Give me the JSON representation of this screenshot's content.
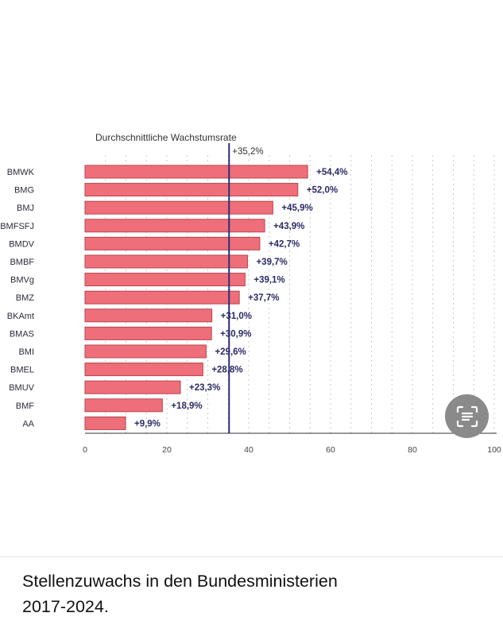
{
  "chart_data": {
    "type": "bar",
    "orientation": "horizontal",
    "categories": [
      "BMWK",
      "BMG",
      "BMJ",
      "BMFSFJ",
      "BMDV",
      "BMBF",
      "BMVg",
      "BMZ",
      "BKAmt",
      "BMAS",
      "BMI",
      "BMEL",
      "BMUV",
      "BMF",
      "AA"
    ],
    "values": [
      54.4,
      52.0,
      45.9,
      43.9,
      42.7,
      39.7,
      39.1,
      37.7,
      31.0,
      30.9,
      29.6,
      28.8,
      23.3,
      18.9,
      9.9
    ],
    "value_labels": [
      "+54,4%",
      "+52,0%",
      "+45,9%",
      "+43,9%",
      "+42,7%",
      "+39,7%",
      "+39,1%",
      "+37,7%",
      "+31,0%",
      "+30,9%",
      "+29,6%",
      "+28,8%",
      "+23,3%",
      "+18,9%",
      "+9,9%"
    ],
    "xlim": [
      0,
      100
    ],
    "xticks": [
      0,
      20,
      40,
      60,
      80,
      100
    ],
    "reference_line": {
      "value": 35.2,
      "label": "Durchschnittliche Wachstumsrate",
      "value_label": "+35,2%",
      "color": "#2b2f7a"
    },
    "grid": "vertical dotted",
    "colors": {
      "bar_fill": "#ee6f79",
      "bar_stroke": "#b8434d",
      "value_label": "#2a2a66"
    }
  },
  "caption": {
    "line1": "Stellenzuwachs in den Bundesministerien",
    "line2": "2017-2024."
  },
  "ocr_button": {
    "icon": "text-scan-icon"
  }
}
